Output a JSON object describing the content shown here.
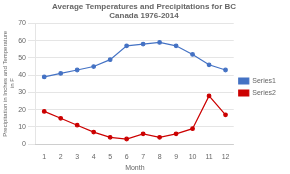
{
  "chart_data": {
    "type": "line",
    "title": "Average Temperatures and Precipitations for BC\nCanada 1976-2014",
    "xlabel": "Month",
    "ylabel": "Precipitation in Inches and Temperature\n in F",
    "x": [
      1,
      2,
      3,
      4,
      5,
      6,
      7,
      8,
      9,
      10,
      11,
      12
    ],
    "series": [
      {
        "name": "Series1",
        "color": "#4472C4",
        "marker": "circle",
        "values": [
          39,
          41,
          43,
          45,
          49,
          57,
          58,
          59,
          57,
          52,
          46,
          43
        ]
      },
      {
        "name": "Series2",
        "color": "#CC0000",
        "marker": "circle",
        "values": [
          19,
          15,
          11,
          7,
          4,
          3,
          6,
          4,
          6,
          9,
          28,
          17
        ]
      }
    ],
    "xlim": [
      0.5,
      12.5
    ],
    "xticks": [
      1,
      2,
      3,
      4,
      5,
      6,
      7,
      8,
      9,
      10,
      11,
      12
    ],
    "ylim": [
      0,
      70
    ],
    "yticks": [
      0,
      10,
      20,
      30,
      40,
      50,
      60,
      70
    ],
    "grid": "y",
    "legend": "right"
  }
}
